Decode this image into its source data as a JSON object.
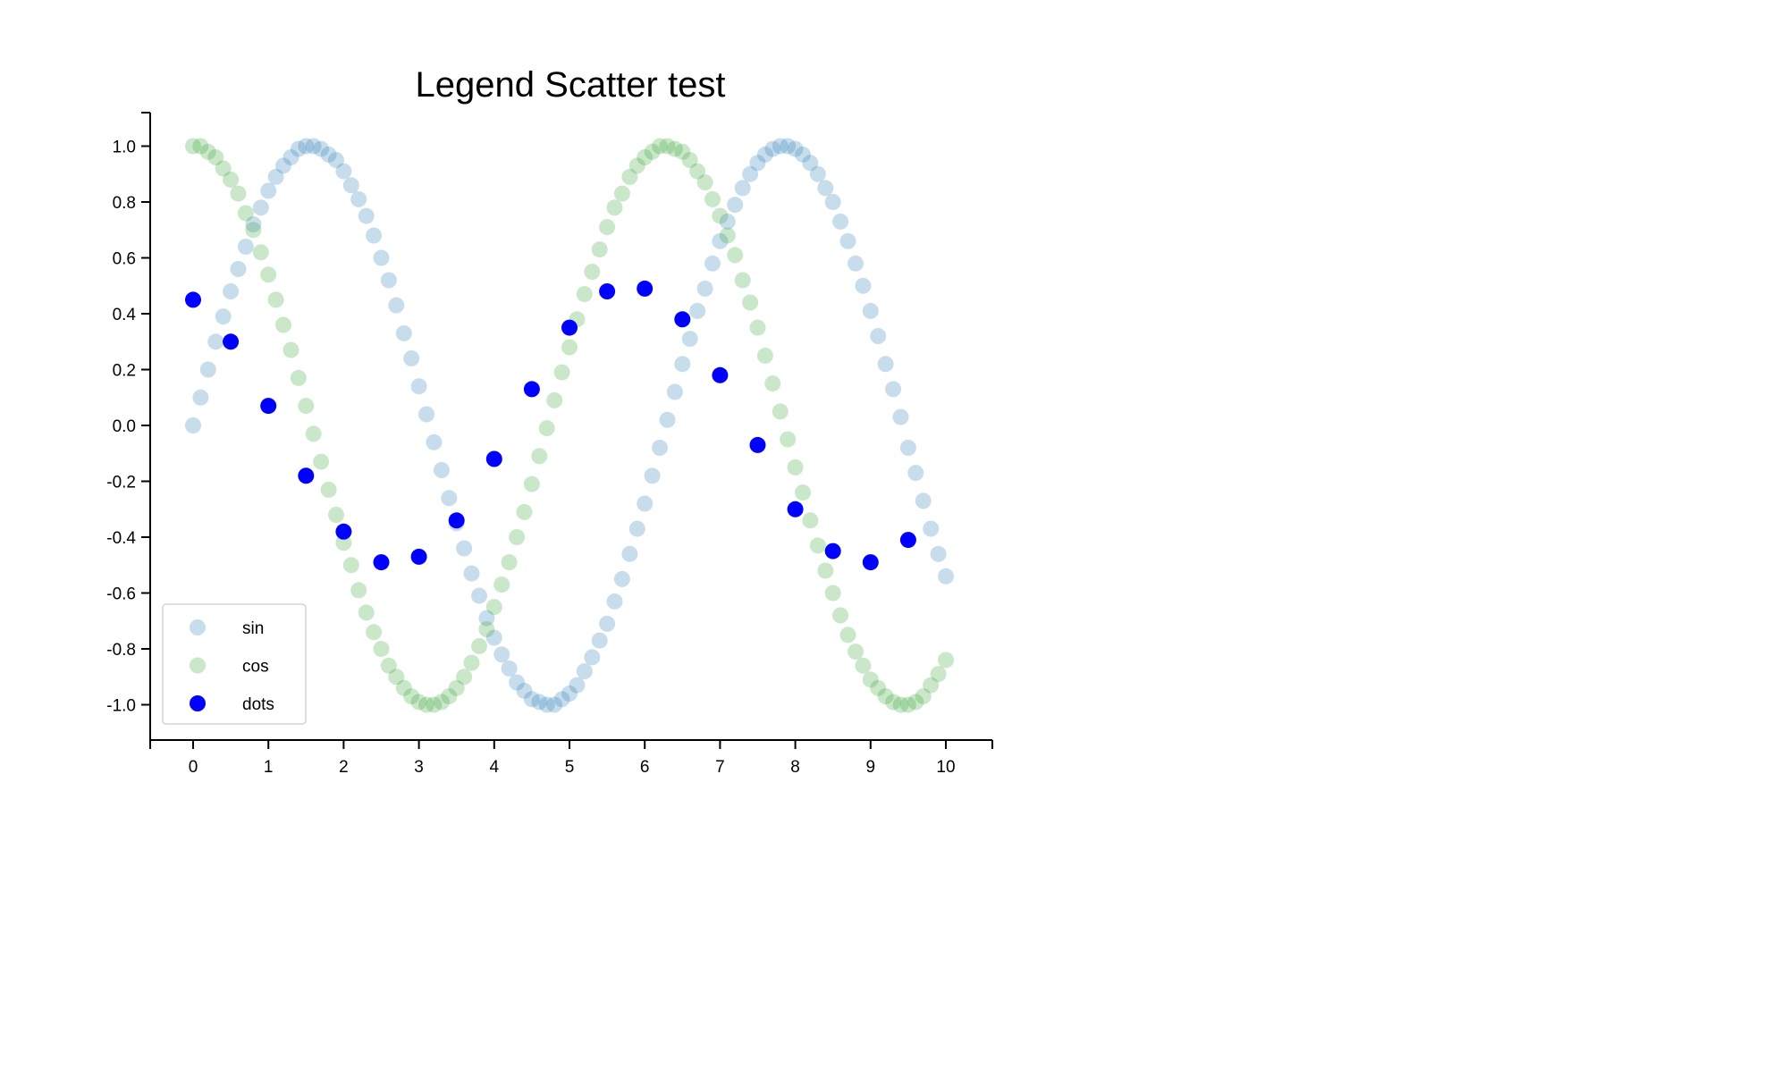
{
  "chart_data": {
    "type": "scatter",
    "title": "Legend Scatter test",
    "xlabel": "",
    "ylabel": "",
    "xlim": [
      -0.55,
      10.6
    ],
    "ylim": [
      -1.12,
      1.12
    ],
    "x_ticks": [
      0,
      1,
      2,
      3,
      4,
      5,
      6,
      7,
      8,
      9,
      10
    ],
    "x_tick_labels": [
      "0",
      "1",
      "2",
      "3",
      "4",
      "5",
      "6",
      "7",
      "8",
      "9",
      "10"
    ],
    "y_ticks": [
      1.0,
      0.8,
      0.6,
      0.4,
      0.2,
      0.0,
      -0.2,
      -0.4,
      -0.6,
      -0.8,
      -1.0
    ],
    "y_tick_labels": [
      "1.0",
      "0.8",
      "0.6",
      "0.4",
      "0.2",
      "0.0",
      "-0.2",
      "-0.4",
      "-0.6",
      "-0.8",
      "-1.0"
    ],
    "grid": false,
    "legend_position": "lower-left",
    "series": [
      {
        "name": "sin",
        "color": "#1f77b4",
        "opacity": 0.25,
        "x": [
          0,
          0.1,
          0.2,
          0.3,
          0.4,
          0.5,
          0.6,
          0.7,
          0.8,
          0.9,
          1,
          1.1,
          1.2,
          1.3,
          1.4,
          1.5,
          1.6,
          1.7,
          1.8,
          1.9,
          2,
          2.1,
          2.2,
          2.3,
          2.4,
          2.5,
          2.6,
          2.7,
          2.8,
          2.9,
          3,
          3.1,
          3.2,
          3.3,
          3.4,
          3.5,
          3.6,
          3.7,
          3.8,
          3.9,
          4,
          4.1,
          4.2,
          4.3,
          4.4,
          4.5,
          4.6,
          4.7,
          4.8,
          4.9,
          5,
          5.1,
          5.2,
          5.3,
          5.4,
          5.5,
          5.6,
          5.7,
          5.8,
          5.9,
          6,
          6.1,
          6.2,
          6.3,
          6.4,
          6.5,
          6.6,
          6.7,
          6.8,
          6.9,
          7,
          7.1,
          7.2,
          7.3,
          7.4,
          7.5,
          7.6,
          7.7,
          7.8,
          7.9,
          8,
          8.1,
          8.2,
          8.3,
          8.4,
          8.5,
          8.6,
          8.7,
          8.8,
          8.9,
          9,
          9.1,
          9.2,
          9.3,
          9.4,
          9.5,
          9.6,
          9.7,
          9.8,
          9.9,
          10
        ],
        "y": [
          0,
          0.1,
          0.2,
          0.3,
          0.39,
          0.48,
          0.56,
          0.64,
          0.72,
          0.78,
          0.84,
          0.89,
          0.93,
          0.96,
          0.99,
          1,
          1,
          0.99,
          0.97,
          0.95,
          0.91,
          0.86,
          0.81,
          0.75,
          0.68,
          0.6,
          0.52,
          0.43,
          0.33,
          0.24,
          0.14,
          0.04,
          -0.06,
          -0.16,
          -0.26,
          -0.35,
          -0.44,
          -0.53,
          -0.61,
          -0.69,
          -0.76,
          -0.82,
          -0.87,
          -0.92,
          -0.95,
          -0.98,
          -0.99,
          -1,
          -1,
          -0.98,
          -0.96,
          -0.93,
          -0.88,
          -0.83,
          -0.77,
          -0.71,
          -0.63,
          -0.55,
          -0.46,
          -0.37,
          -0.28,
          -0.18,
          -0.08,
          0.02,
          0.12,
          0.22,
          0.31,
          0.41,
          0.49,
          0.58,
          0.66,
          0.73,
          0.79,
          0.85,
          0.9,
          0.94,
          0.97,
          0.99,
          1,
          1,
          0.99,
          0.97,
          0.94,
          0.9,
          0.85,
          0.8,
          0.73,
          0.66,
          0.58,
          0.5,
          0.41,
          0.32,
          0.22,
          0.13,
          0.03,
          -0.08,
          -0.17,
          -0.27,
          -0.37,
          -0.46,
          -0.54
        ]
      },
      {
        "name": "cos",
        "color": "#2ca02c",
        "opacity": 0.25,
        "x": [
          0,
          0.1,
          0.2,
          0.3,
          0.4,
          0.5,
          0.6,
          0.7,
          0.8,
          0.9,
          1,
          1.1,
          1.2,
          1.3,
          1.4,
          1.5,
          1.6,
          1.7,
          1.8,
          1.9,
          2,
          2.1,
          2.2,
          2.3,
          2.4,
          2.5,
          2.6,
          2.7,
          2.8,
          2.9,
          3,
          3.1,
          3.2,
          3.3,
          3.4,
          3.5,
          3.6,
          3.7,
          3.8,
          3.9,
          4,
          4.1,
          4.2,
          4.3,
          4.4,
          4.5,
          4.6,
          4.7,
          4.8,
          4.9,
          5,
          5.1,
          5.2,
          5.3,
          5.4,
          5.5,
          5.6,
          5.7,
          5.8,
          5.9,
          6,
          6.1,
          6.2,
          6.3,
          6.4,
          6.5,
          6.6,
          6.7,
          6.8,
          6.9,
          7,
          7.1,
          7.2,
          7.3,
          7.4,
          7.5,
          7.6,
          7.7,
          7.8,
          7.9,
          8,
          8.1,
          8.2,
          8.3,
          8.4,
          8.5,
          8.6,
          8.7,
          8.8,
          8.9,
          9,
          9.1,
          9.2,
          9.3,
          9.4,
          9.5,
          9.6,
          9.7,
          9.8,
          9.9,
          10
        ],
        "y": [
          1,
          1,
          0.98,
          0.96,
          0.92,
          0.88,
          0.83,
          0.76,
          0.7,
          0.62,
          0.54,
          0.45,
          0.36,
          0.27,
          0.17,
          0.07,
          -0.03,
          -0.13,
          -0.23,
          -0.32,
          -0.42,
          -0.5,
          -0.59,
          -0.67,
          -0.74,
          -0.8,
          -0.86,
          -0.9,
          -0.94,
          -0.97,
          -0.99,
          -1,
          -1,
          -0.99,
          -0.97,
          -0.94,
          -0.9,
          -0.85,
          -0.79,
          -0.73,
          -0.65,
          -0.57,
          -0.49,
          -0.4,
          -0.31,
          -0.21,
          -0.11,
          -0.01,
          0.09,
          0.19,
          0.28,
          0.38,
          0.47,
          0.55,
          0.63,
          0.71,
          0.78,
          0.83,
          0.89,
          0.93,
          0.96,
          0.98,
          1,
          1,
          0.99,
          0.98,
          0.95,
          0.91,
          0.87,
          0.81,
          0.75,
          0.68,
          0.61,
          0.52,
          0.44,
          0.35,
          0.25,
          0.15,
          0.05,
          -0.05,
          -0.15,
          -0.24,
          -0.34,
          -0.43,
          -0.52,
          -0.6,
          -0.68,
          -0.75,
          -0.81,
          -0.86,
          -0.91,
          -0.94,
          -0.97,
          -0.99,
          -1,
          -1,
          -0.99,
          -0.97,
          -0.93,
          -0.89,
          -0.84
        ]
      },
      {
        "name": "dots",
        "color": "#0000ff",
        "opacity": 1,
        "x": [
          0,
          0.5,
          1,
          1.5,
          2,
          2.5,
          3,
          3.5,
          4,
          4.5,
          5,
          5.5,
          6,
          6.5,
          7,
          7.5,
          8,
          8.5,
          9,
          9.5
        ],
        "y": [
          0.45,
          0.3,
          0.07,
          -0.18,
          -0.38,
          -0.49,
          -0.47,
          -0.34,
          -0.12,
          0.13,
          0.35,
          0.48,
          0.49,
          0.38,
          0.18,
          -0.07,
          -0.3,
          -0.45,
          -0.49,
          -0.41
        ]
      }
    ]
  }
}
